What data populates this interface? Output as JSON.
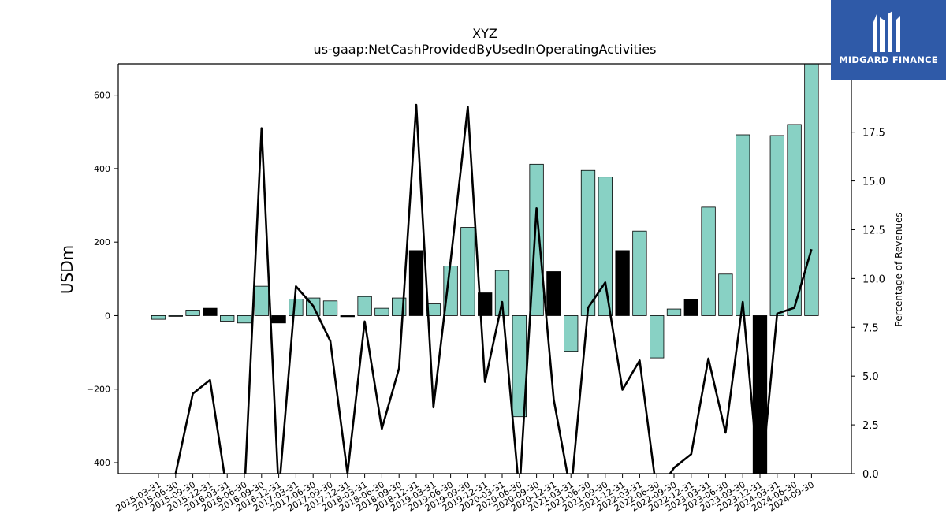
{
  "chart_data": {
    "type": "bar",
    "title": "XYZ",
    "subtitle": "us-gaap:NetCashProvidedByUsedInOperatingActivities",
    "ylabel": "USDm",
    "y2label": "Percentage of Revenues",
    "ylim": [
      -430,
      685
    ],
    "y2lim": [
      0,
      21.0
    ],
    "yticks": [
      -400,
      -200,
      0,
      200,
      400,
      600
    ],
    "y2ticks": [
      "0.0",
      "2.5",
      "5.0",
      "7.5",
      "10.0",
      "12.5",
      "15.0",
      "17.5"
    ],
    "categories": [
      "2015-03-31",
      "2015-06-30",
      "2015-09-30",
      "2015-12-31",
      "2016-03-31",
      "2016-06-30",
      "2016-09-30",
      "2016-12-31",
      "2017-03-31",
      "2017-06-30",
      "2017-09-30",
      "2017-12-31",
      "2018-03-31",
      "2018-06-30",
      "2018-09-30",
      "2018-12-31",
      "2019-03-31",
      "2019-06-30",
      "2019-09-30",
      "2019-12-31",
      "2020-03-31",
      "2020-06-30",
      "2020-09-30",
      "2020-12-31",
      "2021-03-31",
      "2021-06-30",
      "2021-09-30",
      "2021-12-31",
      "2022-03-31",
      "2022-06-30",
      "2022-09-30",
      "2022-12-31",
      "2023-03-31",
      "2023-06-30",
      "2023-09-30",
      "2023-12-31",
      "2024-03-31",
      "2024-06-30",
      "2024-09-30"
    ],
    "series": [
      {
        "name": "",
        "values": [
          -10,
          -2,
          15,
          20,
          -15,
          -20,
          80,
          -20,
          45,
          48,
          40,
          -3,
          52,
          20,
          48,
          177,
          32,
          135,
          240,
          62,
          123,
          -275,
          412,
          120,
          -97,
          395,
          377,
          177,
          230,
          -115,
          18,
          45,
          295,
          113,
          492,
          -430,
          490,
          520,
          685
        ],
        "highlight": [
          false,
          false,
          false,
          true,
          false,
          false,
          false,
          true,
          false,
          false,
          false,
          true,
          false,
          false,
          false,
          true,
          false,
          false,
          false,
          true,
          false,
          false,
          false,
          true,
          false,
          false,
          false,
          true,
          false,
          false,
          false,
          true,
          false,
          false,
          false,
          true,
          false,
          false,
          false
        ]
      },
      {
        "name": "",
        "axis": "right",
        "type": "line",
        "values": [
          -1.0,
          0.0,
          4.1,
          4.8,
          -1.0,
          -1.0,
          17.7,
          -1.0,
          9.6,
          8.6,
          6.8,
          0.0,
          7.8,
          2.3,
          5.4,
          18.9,
          3.4,
          10.9,
          18.8,
          4.7,
          8.8,
          -1.0,
          13.6,
          3.8,
          -1.0,
          8.5,
          9.8,
          4.3,
          5.8,
          -1.0,
          0.3,
          1.0,
          5.9,
          2.1,
          8.8,
          -1.0,
          8.2,
          8.5,
          11.5
        ]
      }
    ],
    "colors": {
      "bar": "#88d1c4",
      "bar_highlight": "#000000",
      "line": "#000000"
    }
  },
  "logo": {
    "text": "MIDGARD FINANCE",
    "background": "#2f5aa8"
  }
}
